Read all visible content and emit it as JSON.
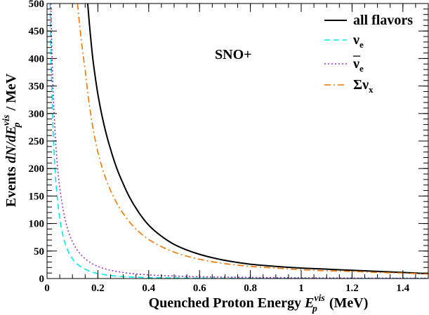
{
  "chart_data": {
    "type": "line",
    "title": "",
    "annotation": "SNO+",
    "xlabel": {
      "prefix": "Quenched Proton Energy ",
      "sym": "E",
      "sub": "p",
      "sup": "vis",
      "suffix": " (MeV)"
    },
    "ylabel": {
      "prefix": "Events ",
      "sym": "dN/dE",
      "sub": "p",
      "sup": "vis",
      "suffix": " / MeV"
    },
    "xlim": [
      0,
      1.5
    ],
    "ylim": [
      0,
      500
    ],
    "x_ticks": [
      0,
      0.2,
      0.4,
      0.6,
      0.8,
      1,
      1.2,
      1.4
    ],
    "x_tick_labels": [
      "0",
      "0.2",
      "0.4",
      "0.6",
      "0.8",
      "1",
      "1.2",
      "1.4"
    ],
    "y_ticks": [
      0,
      50,
      100,
      150,
      200,
      250,
      300,
      350,
      400,
      450,
      500
    ],
    "y_tick_labels": [
      "0",
      "50",
      "100",
      "150",
      "200",
      "250",
      "300",
      "350",
      "400",
      "450",
      "500"
    ],
    "grid": false,
    "legend_position": "top-right",
    "series": [
      {
        "name": "all flavors",
        "legend": {
          "text": "all flavors"
        },
        "color": "#000000",
        "dash": "solid",
        "x": [
          0.16,
          0.18,
          0.2,
          0.25,
          0.3,
          0.35,
          0.4,
          0.45,
          0.5,
          0.6,
          0.7,
          0.8,
          0.9,
          1.0,
          1.1,
          1.2,
          1.3,
          1.4,
          1.5
        ],
        "y": [
          500,
          400,
          335,
          235,
          172,
          128,
          97,
          77,
          62,
          44,
          33,
          26,
          22,
          19,
          17,
          15,
          13,
          11,
          9
        ]
      },
      {
        "name": "ν_e",
        "legend": {
          "base": "ν",
          "sub": "e"
        },
        "color": "#00e5ee",
        "dash": "dash",
        "x": [
          0.012,
          0.02,
          0.03,
          0.04,
          0.05,
          0.06,
          0.08,
          0.1,
          0.12,
          0.15,
          0.2,
          0.25,
          0.3,
          0.4,
          0.5,
          0.6,
          0.8,
          1.0,
          1.2,
          1.5
        ],
        "y": [
          500,
          330,
          210,
          148,
          110,
          84,
          53,
          36,
          26,
          17,
          9,
          5.5,
          3.5,
          1.8,
          1.1,
          0.7,
          0.4,
          0.2,
          0.1,
          0.05
        ]
      },
      {
        "name": "ν̄_e",
        "legend": {
          "base": "ν",
          "sub": "e",
          "bar": true
        },
        "color": "#9932cc",
        "dash": "dot",
        "x": [
          0.015,
          0.02,
          0.03,
          0.04,
          0.05,
          0.06,
          0.08,
          0.1,
          0.12,
          0.15,
          0.2,
          0.25,
          0.3,
          0.4,
          0.5,
          0.6,
          0.8,
          1.0,
          1.2,
          1.5
        ],
        "y": [
          500,
          400,
          280,
          210,
          165,
          135,
          92,
          67,
          51,
          36,
          22,
          15,
          11,
          6.5,
          4.5,
          3.2,
          2.0,
          1.3,
          0.9,
          0.5
        ]
      },
      {
        "name": "Σν_x",
        "legend": {
          "base": "Σν",
          "sub": "x"
        },
        "color": "#ee7600",
        "dash": "dashdot",
        "x": [
          0.12,
          0.15,
          0.18,
          0.2,
          0.25,
          0.3,
          0.35,
          0.4,
          0.45,
          0.5,
          0.6,
          0.7,
          0.8,
          0.9,
          1.0,
          1.1,
          1.2,
          1.3,
          1.4,
          1.5
        ],
        "y": [
          500,
          380,
          275,
          230,
          160,
          118,
          90,
          71,
          58,
          48,
          35,
          27,
          22,
          19,
          16,
          14,
          13,
          11,
          10,
          8
        ]
      }
    ]
  }
}
